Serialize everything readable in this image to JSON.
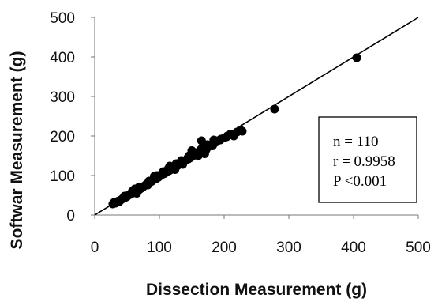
{
  "chart_data": {
    "type": "scatter",
    "xlabel": "Dissection Measurement (g)",
    "ylabel": "Softwar Measurement (g)",
    "xlim": [
      0,
      500
    ],
    "ylim": [
      0,
      500
    ],
    "xticks": [
      "0",
      "100",
      "200",
      "300",
      "400",
      "500"
    ],
    "yticks": [
      "0",
      "100",
      "200",
      "300",
      "400",
      "500"
    ],
    "grid": false,
    "trendline": {
      "type": "identity",
      "from": [
        0,
        0
      ],
      "to": [
        500,
        500
      ]
    },
    "annotation": [
      "n = 110",
      "r = 0.9958",
      "P <0.001"
    ],
    "series": [
      {
        "points": [
          [
            28,
            28
          ],
          [
            32,
            30
          ],
          [
            35,
            33
          ],
          [
            38,
            36
          ],
          [
            40,
            38
          ],
          [
            42,
            40
          ],
          [
            45,
            42
          ],
          [
            48,
            45
          ],
          [
            50,
            47
          ],
          [
            52,
            50
          ],
          [
            55,
            52
          ],
          [
            58,
            55
          ],
          [
            60,
            57
          ],
          [
            62,
            60
          ],
          [
            65,
            55
          ],
          [
            68,
            63
          ],
          [
            70,
            66
          ],
          [
            72,
            68
          ],
          [
            75,
            72
          ],
          [
            78,
            75
          ],
          [
            80,
            78
          ],
          [
            82,
            80
          ],
          [
            85,
            82
          ],
          [
            88,
            85
          ],
          [
            90,
            88
          ],
          [
            92,
            90
          ],
          [
            95,
            92
          ],
          [
            98,
            95
          ],
          [
            100,
            98
          ],
          [
            102,
            100
          ],
          [
            105,
            103
          ],
          [
            108,
            105
          ],
          [
            110,
            108
          ],
          [
            112,
            110
          ],
          [
            115,
            112
          ],
          [
            118,
            115
          ],
          [
            120,
            118
          ],
          [
            122,
            120
          ],
          [
            125,
            122
          ],
          [
            128,
            125
          ],
          [
            130,
            128
          ],
          [
            132,
            130
          ],
          [
            135,
            132
          ],
          [
            138,
            135
          ],
          [
            140,
            138
          ],
          [
            142,
            140
          ],
          [
            145,
            142
          ],
          [
            148,
            145
          ],
          [
            150,
            148
          ],
          [
            152,
            150
          ],
          [
            155,
            152
          ],
          [
            158,
            155
          ],
          [
            160,
            158
          ],
          [
            162,
            160
          ],
          [
            165,
            188
          ],
          [
            168,
            180
          ],
          [
            170,
            168
          ],
          [
            172,
            165
          ],
          [
            175,
            172
          ],
          [
            178,
            175
          ],
          [
            180,
            178
          ],
          [
            182,
            175
          ],
          [
            185,
            182
          ],
          [
            188,
            185
          ],
          [
            190,
            188
          ],
          [
            195,
            192
          ],
          [
            200,
            195
          ],
          [
            205,
            200
          ],
          [
            210,
            205
          ],
          [
            215,
            200
          ],
          [
            220,
            210
          ],
          [
            225,
            215
          ],
          [
            228,
            212
          ],
          [
            30,
            32
          ],
          [
            36,
            35
          ],
          [
            44,
            43
          ],
          [
            54,
            52
          ],
          [
            64,
            62
          ],
          [
            74,
            70
          ],
          [
            84,
            86
          ],
          [
            94,
            93
          ],
          [
            104,
            105
          ],
          [
            114,
            118
          ],
          [
            124,
            115
          ],
          [
            134,
            138
          ],
          [
            144,
            145
          ],
          [
            150,
            163
          ],
          [
            156,
            158
          ],
          [
            164,
            166
          ],
          [
            174,
            178
          ],
          [
            184,
            190
          ],
          [
            194,
            190
          ],
          [
            204,
            198
          ],
          [
            160,
            150
          ],
          [
            170,
            155
          ],
          [
            116,
            124
          ],
          [
            126,
            130
          ],
          [
            136,
            128
          ],
          [
            146,
            150
          ],
          [
            92,
            98
          ],
          [
            82,
            76
          ],
          [
            62,
            66
          ],
          [
            46,
            48
          ],
          [
            38,
            34
          ],
          [
            58,
            60
          ],
          [
            68,
            70
          ],
          [
            106,
            110
          ],
          [
            96,
            100
          ],
          [
            278,
            268
          ],
          [
            405,
            398
          ]
        ]
      }
    ]
  }
}
